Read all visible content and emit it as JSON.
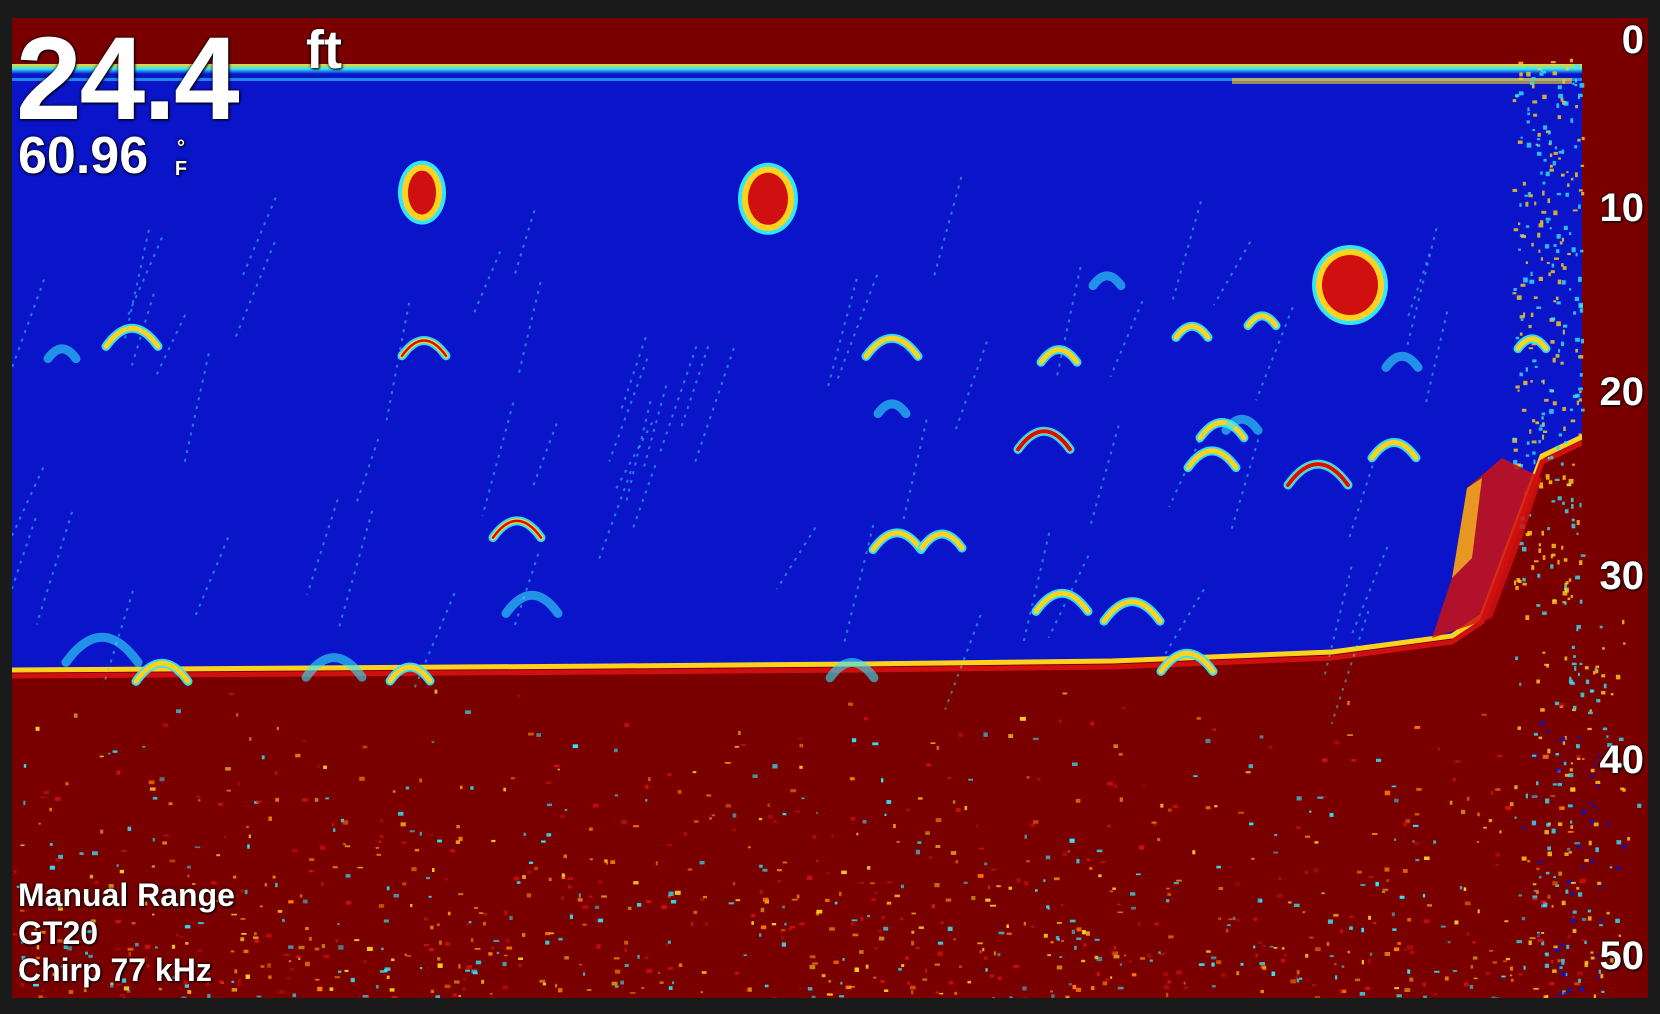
{
  "depth": {
    "value": "24.4",
    "unit": "ft"
  },
  "temperature": {
    "value": "60.96",
    "unit": "°F"
  },
  "depth_scale": {
    "labels": [
      "0",
      "10",
      "20",
      "30",
      "40",
      "50"
    ]
  },
  "info": {
    "range_mode": "Manual Range",
    "transducer": "GT20",
    "frequency": "Chirp 77 kHz"
  },
  "colors": {
    "water": "#0a14c8",
    "bottom": "#7a0000",
    "strong_return": "#d01010",
    "medium_return": "#ffd21e",
    "weak_return": "#32e6ff",
    "frame": "#1a1a1a"
  }
}
